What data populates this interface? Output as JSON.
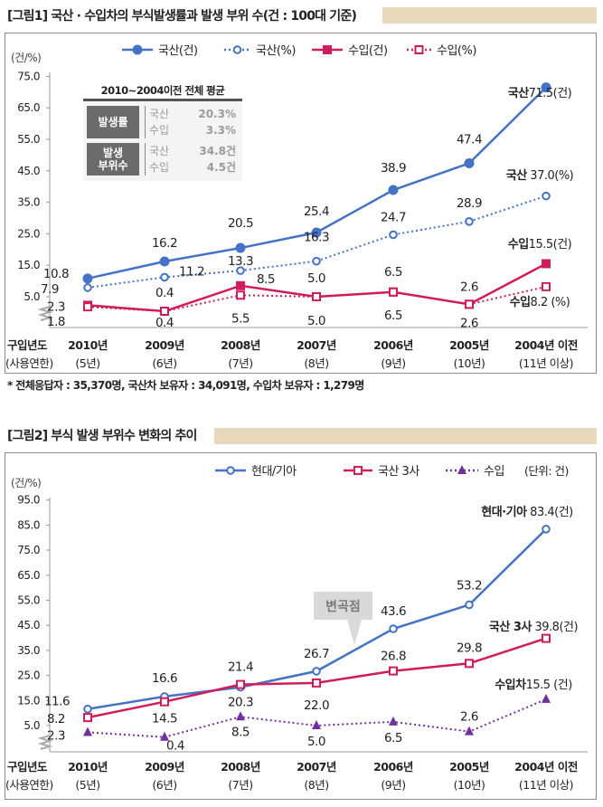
{
  "figure1": {
    "title": "[그림1] 국산 · 수입차의 부식발생률과 발생 부위 수(건 : 100대 기준)",
    "inset": {
      "title": "2010~2004이전 전체 평균",
      "groups": [
        {
          "label": "발생률",
          "rows": [
            {
              "name": "국산",
              "value": "20.3%"
            },
            {
              "name": "수입",
              "value": "3.3%"
            }
          ]
        },
        {
          "label": "발생\n부위수",
          "rows": [
            {
              "name": "국산",
              "value": "34.8건"
            },
            {
              "name": "수입",
              "value": "4.5건"
            }
          ]
        }
      ]
    },
    "footnote": "* 전체응답자 : 35,370명, 국산차 보유자 : 34,091명, 수입차 보유자 : 1,279명"
  },
  "figure2": {
    "title": "[그림2] 부식 발생 부위수 변화의 추이",
    "unit_note": "(단위: 건)",
    "callout": "변곡점"
  },
  "chart_data": [
    {
      "type": "line",
      "ylabel": "(건/%)",
      "yticks": [
        "5.0",
        "15.0",
        "25.0",
        "35.0",
        "45.0",
        "55.0",
        "65.0",
        "75.0"
      ],
      "xlabel": "구입년도",
      "xsublabel": "(사용연한)",
      "categories": [
        "2010년",
        "2009년",
        "2008년",
        "2007년",
        "2006년",
        "2005년",
        "2004년 이전"
      ],
      "subcategories": [
        "(5년)",
        "(6년)",
        "(7년)",
        "(8년)",
        "(9년)",
        "(10년)",
        "(11년 이상)"
      ],
      "y_axis_break": true,
      "grid": false,
      "legend_position": "top",
      "series": [
        {
          "name": "국산(건)",
          "values": [
            10.8,
            16.2,
            20.5,
            25.4,
            38.9,
            47.4,
            71.5
          ],
          "color": "#4472c4",
          "line": "solid",
          "marker": "circle-filled",
          "end_label_name": "국산",
          "end_label_value": "71.5(건)"
        },
        {
          "name": "국산(%)",
          "values": [
            7.9,
            11.2,
            13.3,
            16.3,
            24.7,
            28.9,
            37.0
          ],
          "color": "#4472c4",
          "line": "dotted",
          "marker": "circle-open",
          "end_label_name": "국산",
          "end_label_value": " 37.0(%)"
        },
        {
          "name": "수입(건)",
          "values": [
            2.3,
            0.4,
            8.5,
            5.0,
            6.5,
            2.6,
            15.5
          ],
          "color": "#d01c5b",
          "line": "solid",
          "marker": "square-filled",
          "end_label_name": "수입",
          "end_label_value": "15.5(건)"
        },
        {
          "name": "수입(%)",
          "values": [
            1.8,
            0.4,
            5.5,
            5.0,
            6.5,
            2.6,
            8.2
          ],
          "color": "#d01c5b",
          "line": "dotted",
          "marker": "square-open",
          "end_label_name": "수입",
          "end_label_value": "8.2 (%)"
        }
      ]
    },
    {
      "type": "line",
      "ylabel": "(건/%)",
      "yticks": [
        "5.0",
        "15.0",
        "25.0",
        "35.0",
        "45.0",
        "55.0",
        "65.0",
        "75.0",
        "85.0",
        "95.0"
      ],
      "xlabel": "구입년도",
      "xsublabel": "(사용연한)",
      "categories": [
        "2010년",
        "2009년",
        "2008년",
        "2007년",
        "2006년",
        "2005년",
        "2004년 이전"
      ],
      "subcategories": [
        "(5년)",
        "(6년)",
        "(7년)",
        "(8년)",
        "(9년)",
        "(10년)",
        "(11년 이상)"
      ],
      "y_axis_break": true,
      "grid": false,
      "legend_position": "top",
      "series": [
        {
          "name": "현대/기아",
          "values": [
            11.6,
            16.6,
            20.3,
            26.7,
            43.6,
            53.2,
            83.4
          ],
          "color": "#4472c4",
          "line": "solid",
          "marker": "circle-open",
          "end_label_name": "현대·기아",
          "end_label_value": " 83.4(건)"
        },
        {
          "name": "국산 3사",
          "values": [
            8.2,
            14.5,
            21.4,
            22.0,
            26.8,
            29.8,
            39.8
          ],
          "color": "#d01c5b",
          "line": "solid",
          "marker": "square-open",
          "end_label_name": "국산 3사",
          "end_label_value": " 39.8(건)"
        },
        {
          "name": "수입",
          "values": [
            2.3,
            0.4,
            8.5,
            5.0,
            6.5,
            2.6,
            15.5
          ],
          "color": "#7030a0",
          "line": "dotted",
          "marker": "triangle-filled",
          "end_label_name": "수입차",
          "end_label_value": "15.5 (건)"
        }
      ]
    }
  ]
}
